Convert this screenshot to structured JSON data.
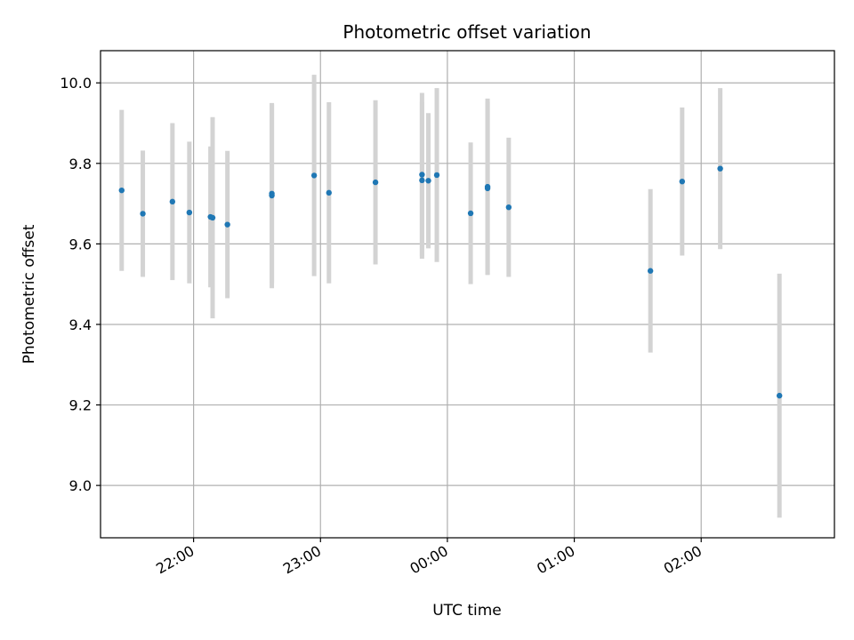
{
  "chart_data": {
    "type": "scatter",
    "title": "Photometric offset variation",
    "xlabel": "UTC time",
    "ylabel": "Photometric offset",
    "x_ticks": [
      "22:00",
      "23:00",
      "00:00",
      "01:00",
      "02:00"
    ],
    "y_ticks": [
      "9.0",
      "9.2",
      "9.4",
      "9.6",
      "9.8",
      "10.0"
    ],
    "ylim": [
      8.87,
      10.08
    ],
    "xlim": [
      "21:16",
      "03:03"
    ],
    "grid": true,
    "colors": {
      "marker": "#1f77b4",
      "errorbar": "#d3d3d3",
      "grid": "#b0b0b0"
    },
    "series": [
      {
        "points": [
          {
            "x": "21:26",
            "y": 9.733,
            "err": 0.2
          },
          {
            "x": "21:36",
            "y": 9.675,
            "err": 0.157
          },
          {
            "x": "21:50",
            "y": 9.705,
            "err": 0.195
          },
          {
            "x": "21:58",
            "y": 9.678,
            "err": 0.176
          },
          {
            "x": "22:08",
            "y": 9.667,
            "err": 0.175
          },
          {
            "x": "22:09",
            "y": 9.665,
            "err": 0.25
          },
          {
            "x": "22:16",
            "y": 9.648,
            "err": 0.183
          },
          {
            "x": "22:37",
            "y": 9.725,
            "err": 0.222
          },
          {
            "x": "22:37",
            "y": 9.72,
            "err": 0.23
          },
          {
            "x": "22:57",
            "y": 9.77,
            "err": 0.25
          },
          {
            "x": "23:04",
            "y": 9.727,
            "err": 0.225
          },
          {
            "x": "23:26",
            "y": 9.753,
            "err": 0.204
          },
          {
            "x": "23:48",
            "y": 9.772,
            "err": 0.203
          },
          {
            "x": "23:48",
            "y": 9.758,
            "err": 0.195
          },
          {
            "x": "23:51",
            "y": 9.757,
            "err": 0.168
          },
          {
            "x": "23:55",
            "y": 9.771,
            "err": 0.216
          },
          {
            "x": "00:11",
            "y": 9.676,
            "err": 0.176
          },
          {
            "x": "00:19",
            "y": 9.742,
            "err": 0.219
          },
          {
            "x": "00:19",
            "y": 9.738,
            "err": 0.215
          },
          {
            "x": "00:29",
            "y": 9.691,
            "err": 0.173
          },
          {
            "x": "01:36",
            "y": 9.533,
            "err": 0.203
          },
          {
            "x": "01:51",
            "y": 9.755,
            "err": 0.184
          },
          {
            "x": "02:09",
            "y": 9.787,
            "err": 0.2
          },
          {
            "x": "02:37",
            "y": 9.223,
            "err": 0.303
          }
        ]
      }
    ]
  }
}
